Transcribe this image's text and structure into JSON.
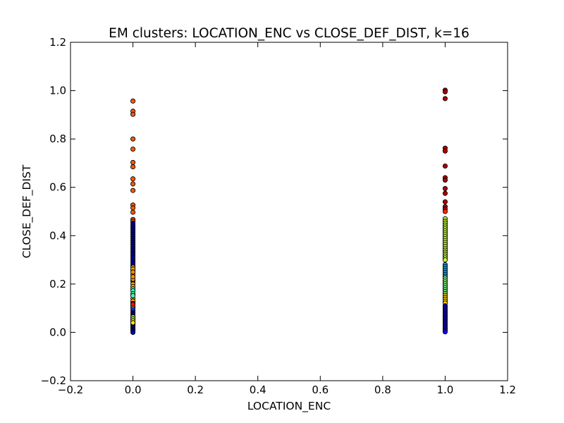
{
  "chart_data": {
    "type": "scatter",
    "title": "EM clusters: LOCATION_ENC vs CLOSE_DEF_DIST, k=16",
    "xlabel": "LOCATION_ENC",
    "ylabel": "CLOSE_DEF_DIST",
    "xlim": [
      -0.2,
      1.2
    ],
    "ylim": [
      -0.2,
      1.2
    ],
    "xticks": [
      -0.2,
      0.0,
      0.2,
      0.4,
      0.6,
      0.8,
      1.0,
      1.2
    ],
    "yticks": [
      -0.2,
      0.0,
      0.2,
      0.4,
      0.6,
      0.8,
      1.0,
      1.2
    ],
    "xtick_labels": [
      "−0.2",
      "0.0",
      "0.2",
      "0.4",
      "0.6",
      "0.8",
      "1.0",
      "1.2"
    ],
    "ytick_labels": [
      "−0.2",
      "0.0",
      "0.2",
      "0.4",
      "0.6",
      "0.8",
      "1.0",
      "1.2"
    ],
    "grid": false,
    "series": [
      {
        "color": "#ff5a00",
        "points": [
          [
            0,
            0.957
          ],
          [
            0,
            0.915
          ],
          [
            0,
            0.902
          ],
          [
            0,
            0.8
          ],
          [
            0,
            0.758
          ],
          [
            0,
            0.703
          ],
          [
            0,
            0.685
          ],
          [
            0,
            0.635
          ],
          [
            0,
            0.614
          ],
          [
            0,
            0.587
          ],
          [
            0,
            0.527
          ],
          [
            0,
            0.515
          ],
          [
            0,
            0.497
          ],
          [
            0,
            0.467
          ],
          [
            0,
            0.46
          ]
        ]
      },
      {
        "color": "#0000bf",
        "points": [
          [
            0,
            0.452
          ],
          [
            0,
            0.444
          ],
          [
            0,
            0.436
          ],
          [
            0,
            0.428
          ],
          [
            0,
            0.42
          ],
          [
            0,
            0.412
          ],
          [
            0,
            0.404
          ],
          [
            0,
            0.396
          ],
          [
            0,
            0.388
          ],
          [
            0,
            0.38
          ],
          [
            0,
            0.372
          ],
          [
            0,
            0.364
          ],
          [
            0,
            0.356
          ],
          [
            0,
            0.348
          ],
          [
            0,
            0.34
          ],
          [
            0,
            0.332
          ],
          [
            0,
            0.324
          ],
          [
            0,
            0.316
          ],
          [
            0,
            0.308
          ],
          [
            0,
            0.3
          ],
          [
            0,
            0.292
          ],
          [
            0,
            0.284
          ],
          [
            0,
            0.276
          ],
          [
            0,
            0.216
          ],
          [
            0,
            0.21
          ],
          [
            0,
            0.09
          ],
          [
            0,
            0.082
          ],
          [
            0,
            0.074
          ],
          [
            0,
            0.06
          ],
          [
            0,
            0.052
          ],
          [
            0,
            0.044
          ],
          [
            0,
            0.036
          ],
          [
            0,
            0.03
          ],
          [
            0,
            0.024
          ],
          [
            0,
            0.018
          ],
          [
            0,
            0.012
          ],
          [
            0,
            0.006
          ],
          [
            0,
            0.0
          ]
        ]
      },
      {
        "color": "#0030ff",
        "points": [
          [
            0,
            0.258
          ],
          [
            0,
            0.126
          ],
          [
            0,
            0.104
          ],
          [
            0,
            0.098
          ],
          [
            0,
            0.066
          ]
        ]
      },
      {
        "color": "#ffa500",
        "points": [
          [
            0,
            0.27
          ],
          [
            0,
            0.262
          ],
          [
            0,
            0.24
          ],
          [
            0,
            0.22
          ],
          [
            0,
            0.2
          ],
          [
            0,
            0.19
          ],
          [
            0,
            0.14
          ],
          [
            0,
            0.13
          ],
          [
            0,
            0.11
          ]
        ]
      },
      {
        "color": "#ff8c00",
        "points": [
          [
            0,
            0.25
          ],
          [
            0,
            0.23
          ]
        ]
      },
      {
        "color": "#40ffb7",
        "points": [
          [
            0,
            0.18
          ],
          [
            0,
            0.172
          ],
          [
            0,
            0.16
          ],
          [
            0,
            0.152
          ]
        ]
      },
      {
        "color": "#ee1300",
        "points": [
          [
            0,
            0.12
          ],
          [
            0,
            0.116
          ]
        ]
      },
      {
        "color": "#b7ff40",
        "points": [
          [
            0,
            0.064
          ],
          [
            0,
            0.056
          ]
        ]
      },
      {
        "color": "#ffe600",
        "points": [
          [
            0,
            0.048
          ],
          [
            0,
            0.04
          ]
        ]
      },
      {
        "color": "#b00000",
        "points": [
          [
            1,
            1.002
          ],
          [
            1,
            0.995
          ],
          [
            1,
            0.967
          ],
          [
            1,
            0.762
          ],
          [
            1,
            0.75
          ],
          [
            1,
            0.688
          ],
          [
            1,
            0.64
          ],
          [
            1,
            0.63
          ],
          [
            1,
            0.595
          ],
          [
            1,
            0.575
          ],
          [
            1,
            0.54
          ],
          [
            1,
            0.52
          ],
          [
            1,
            0.51
          ]
        ]
      },
      {
        "color": "#ff2a00",
        "points": [
          [
            1,
            0.5
          ]
        ]
      },
      {
        "color": "#c4ff39",
        "points": [
          [
            1,
            0.47
          ],
          [
            1,
            0.46
          ],
          [
            1,
            0.452
          ],
          [
            1,
            0.444
          ],
          [
            1,
            0.436
          ],
          [
            1,
            0.428
          ],
          [
            1,
            0.42
          ],
          [
            1,
            0.412
          ],
          [
            1,
            0.404
          ],
          [
            1,
            0.396
          ],
          [
            1,
            0.388
          ],
          [
            1,
            0.38
          ],
          [
            1,
            0.372
          ],
          [
            1,
            0.364
          ],
          [
            1,
            0.356
          ],
          [
            1,
            0.348
          ],
          [
            1,
            0.34
          ],
          [
            1,
            0.332
          ],
          [
            1,
            0.324
          ],
          [
            1,
            0.316
          ],
          [
            1,
            0.308
          ],
          [
            1,
            0.3
          ]
        ]
      },
      {
        "color": "#00a8ff",
        "points": [
          [
            1,
            0.28
          ],
          [
            1,
            0.272
          ],
          [
            1,
            0.264
          ],
          [
            1,
            0.256
          ],
          [
            1,
            0.248
          ],
          [
            1,
            0.24
          ],
          [
            1,
            0.232
          ]
        ]
      },
      {
        "color": "#7dff7a",
        "points": [
          [
            1,
            0.225
          ],
          [
            1,
            0.217
          ],
          [
            1,
            0.209
          ],
          [
            1,
            0.201
          ],
          [
            1,
            0.193
          ],
          [
            1,
            0.185
          ],
          [
            1,
            0.177
          ],
          [
            1,
            0.169
          ],
          [
            1,
            0.161
          ]
        ]
      },
      {
        "color": "#ffd700",
        "points": [
          [
            1,
            0.153
          ],
          [
            1,
            0.145
          ],
          [
            1,
            0.137
          ],
          [
            1,
            0.129
          ],
          [
            1,
            0.121
          ]
        ]
      },
      {
        "color": "#1400ff",
        "points": [
          [
            1,
            0.11
          ],
          [
            1,
            0.104
          ],
          [
            1,
            0.098
          ],
          [
            1,
            0.092
          ],
          [
            1,
            0.086
          ],
          [
            1,
            0.08
          ],
          [
            1,
            0.074
          ],
          [
            1,
            0.068
          ],
          [
            1,
            0.062
          ],
          [
            1,
            0.056
          ],
          [
            1,
            0.05
          ],
          [
            1,
            0.044
          ],
          [
            1,
            0.038
          ],
          [
            1,
            0.032
          ],
          [
            1,
            0.026
          ],
          [
            1,
            0.02
          ],
          [
            1,
            0.014
          ],
          [
            1,
            0.008
          ],
          [
            1,
            0.002
          ]
        ]
      }
    ]
  }
}
